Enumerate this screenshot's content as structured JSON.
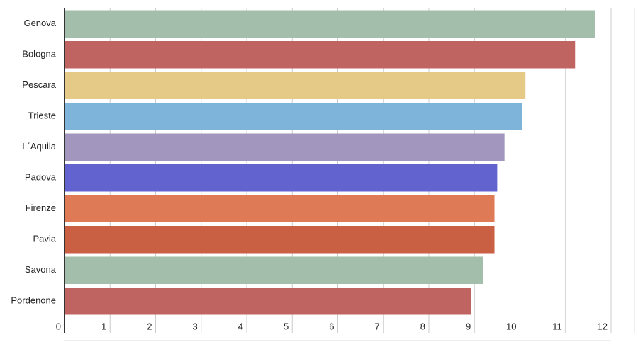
{
  "chart_data": {
    "type": "bar",
    "orientation": "horizontal",
    "categories": [
      "Genova",
      "Bologna",
      "Pescara",
      "Trieste",
      "L´Aquila",
      "Padova",
      "Firenze",
      "Pavia",
      "Savona",
      "Pordenone"
    ],
    "values": [
      11.65,
      11.21,
      10.12,
      10.05,
      9.66,
      9.5,
      9.44,
      9.44,
      9.19,
      8.93
    ],
    "colors": [
      "#a3bfab",
      "#c06461",
      "#e5c987",
      "#7fb4da",
      "#a296bf",
      "#6263cf",
      "#df7a56",
      "#c95f43",
      "#a3bfab",
      "#c06461"
    ],
    "xlim": [
      0,
      12
    ],
    "xticks": [
      0,
      1,
      2,
      3,
      4,
      5,
      6,
      7,
      8,
      9,
      10,
      11,
      12
    ],
    "grid": true
  }
}
